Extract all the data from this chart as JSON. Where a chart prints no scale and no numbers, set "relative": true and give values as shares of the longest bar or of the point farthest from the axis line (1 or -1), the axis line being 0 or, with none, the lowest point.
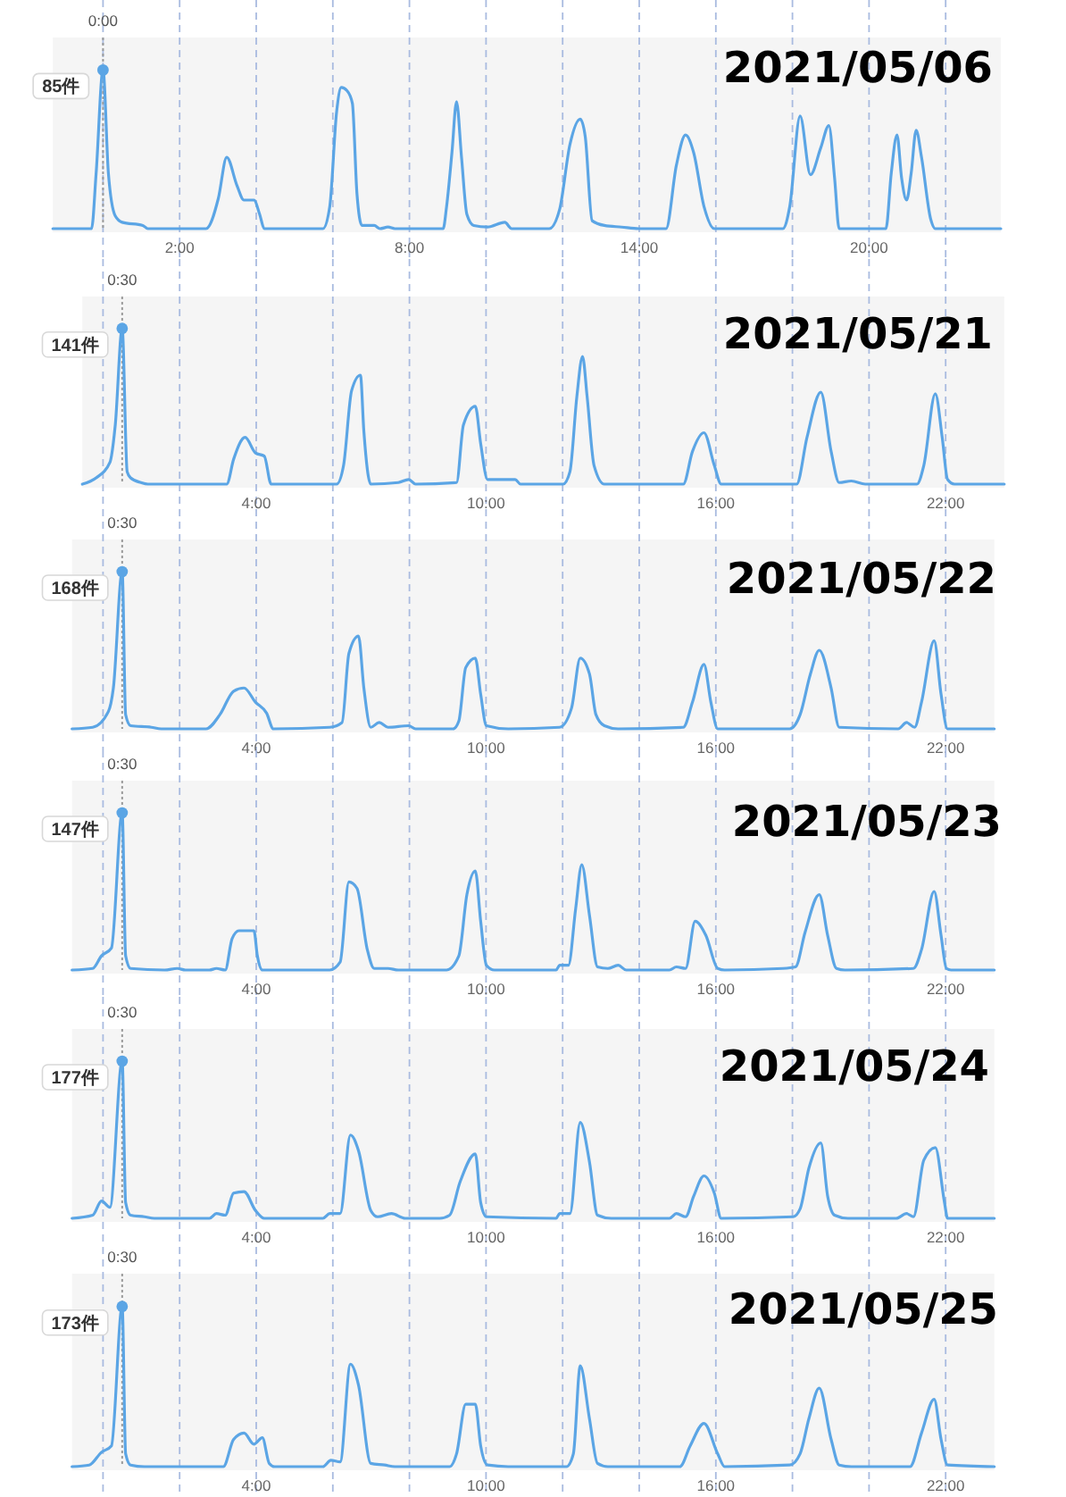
{
  "chart_data": [
    {
      "type": "line",
      "title": "2021/05/06",
      "relative": true,
      "xlim": [
        -1.31,
        23.44
      ],
      "tick_labels": "x",
      "grid": "x",
      "xticks": [
        {
          "value": 0,
          "label": null
        },
        {
          "value": 2,
          "label": "2:00"
        },
        {
          "value": 4,
          "label": null
        },
        {
          "value": 6,
          "label": null
        },
        {
          "value": 8,
          "label": "8:00"
        },
        {
          "value": 10,
          "label": null
        },
        {
          "value": 12,
          "label": null
        },
        {
          "value": 14,
          "label": "14:00"
        },
        {
          "value": 16,
          "label": null
        },
        {
          "value": 18,
          "label": null
        },
        {
          "value": 20,
          "label": "20:00"
        },
        {
          "value": 22,
          "label": null
        }
      ],
      "ref_lines": [
        {
          "axis": "x",
          "value": 0,
          "label": "0:00",
          "color": "#9a9a9a",
          "line_style": "dotted"
        }
      ],
      "annotations": [
        "85件"
      ],
      "series": [
        {
          "color": "#5ba5e5",
          "x": [
            -1.31,
            -0.3,
            -0.18,
            0,
            0.14,
            0.32,
            0.5,
            1.04,
            1.17,
            2.69,
            3.01,
            3.23,
            3.5,
            3.68,
            3.94,
            4.09,
            4.21,
            5.74,
            5.92,
            6.1,
            6.22,
            6.37,
            6.51,
            6.63,
            6.76,
            7.08,
            7.23,
            7.44,
            7.62,
            8.88,
            8.97,
            9.11,
            9.23,
            9.36,
            9.5,
            9.68,
            10.04,
            10.49,
            10.67,
            11.65,
            11.92,
            12.19,
            12.46,
            12.59,
            12.77,
            13.09,
            13.54,
            13.99,
            14.7,
            14.97,
            15.21,
            15.42,
            15.69,
            15.96,
            17.75,
            17.93,
            18.2,
            18.47,
            18.74,
            18.95,
            19.1,
            19.22,
            20.44,
            20.58,
            20.73,
            20.85,
            20.98,
            21.1,
            21.23,
            21.37,
            21.61,
            21.73,
            23.44
          ],
          "values": [
            0,
            0,
            0.35,
            1,
            0.35,
            0.08,
            0.04,
            0.02,
            0,
            0,
            0.19,
            0.45,
            0.27,
            0.18,
            0.18,
            0.09,
            0,
            0,
            0.14,
            0.74,
            0.89,
            0.87,
            0.79,
            0.22,
            0.02,
            0.02,
            0,
            0.01,
            0,
            0,
            0.14,
            0.48,
            0.8,
            0.45,
            0.09,
            0.02,
            0.01,
            0.04,
            0,
            0,
            0.12,
            0.53,
            0.69,
            0.58,
            0.05,
            0.02,
            0.01,
            0,
            0,
            0.4,
            0.59,
            0.48,
            0.14,
            0,
            0,
            0.14,
            0.71,
            0.34,
            0.51,
            0.65,
            0.32,
            0,
            0,
            0.35,
            0.59,
            0.32,
            0.18,
            0.35,
            0.62,
            0.45,
            0.06,
            0,
            0
          ]
        },
        {
          "type": "scatter",
          "color": "#5ba5e5",
          "marker": "circle",
          "x": [
            0
          ],
          "values": [
            1
          ]
        }
      ]
    },
    {
      "type": "line",
      "title": "2021/05/21",
      "relative": true,
      "xlim": [
        -0.54,
        23.53
      ],
      "tick_labels": "x",
      "grid": "x",
      "xticks": [
        {
          "value": 0,
          "label": null
        },
        {
          "value": 2,
          "label": null
        },
        {
          "value": 4,
          "label": "4:00"
        },
        {
          "value": 6,
          "label": null
        },
        {
          "value": 8,
          "label": null
        },
        {
          "value": 10,
          "label": "10:00"
        },
        {
          "value": 12,
          "label": null
        },
        {
          "value": 14,
          "label": null
        },
        {
          "value": 16,
          "label": "16:00"
        },
        {
          "value": 18,
          "label": null
        },
        {
          "value": 20,
          "label": null
        },
        {
          "value": 22,
          "label": "22:00"
        }
      ],
      "ref_lines": [
        {
          "axis": "x",
          "value": 0.5,
          "label": "0:30",
          "color": "#9a9a9a",
          "line_style": "dotted"
        }
      ],
      "annotations": [
        "141件"
      ],
      "series": [
        {
          "color": "#5ba5e5",
          "x": [
            -0.54,
            -0.18,
            0.18,
            0.32,
            0.5,
            0.63,
            0.72,
            0.99,
            1.17,
            3.23,
            3.41,
            3.71,
            3.98,
            4.21,
            4.39,
            6.1,
            6.28,
            6.49,
            6.72,
            6.81,
            6.99,
            7.71,
            7.98,
            8.16,
            9.23,
            9.41,
            9.72,
            9.86,
            10.04,
            10.76,
            10.9,
            12.01,
            12.19,
            12.37,
            12.52,
            12.64,
            12.82,
            13.09,
            15.15,
            15.39,
            15.69,
            15.96,
            16.14,
            18.11,
            18.38,
            18.74,
            19.01,
            19.22,
            19.54,
            19.9,
            21.25,
            21.43,
            21.73,
            21.91,
            22.05,
            22.23,
            23.53
          ],
          "values": [
            0,
            0.04,
            0.14,
            0.38,
            1,
            0.08,
            0.04,
            0.01,
            0,
            0,
            0.16,
            0.3,
            0.2,
            0.18,
            0,
            0,
            0.12,
            0.6,
            0.7,
            0.34,
            0,
            0.01,
            0.03,
            0,
            0.01,
            0.38,
            0.5,
            0.26,
            0.03,
            0.03,
            0,
            0,
            0.08,
            0.56,
            0.82,
            0.56,
            0.12,
            0,
            0,
            0.21,
            0.33,
            0.12,
            0,
            0,
            0.3,
            0.59,
            0.21,
            0.01,
            0.02,
            0,
            0,
            0.12,
            0.58,
            0.3,
            0.03,
            0,
            0
          ]
        },
        {
          "type": "scatter",
          "color": "#5ba5e5",
          "marker": "circle",
          "x": [
            0.5
          ],
          "values": [
            1
          ]
        }
      ]
    },
    {
      "type": "line",
      "title": "2021/05/22",
      "relative": true,
      "xlim": [
        -0.81,
        23.27
      ],
      "tick_labels": "x",
      "grid": "x",
      "xticks": [
        {
          "value": 0,
          "label": null
        },
        {
          "value": 2,
          "label": null
        },
        {
          "value": 4,
          "label": "4:00"
        },
        {
          "value": 6,
          "label": null
        },
        {
          "value": 8,
          "label": null
        },
        {
          "value": 10,
          "label": "10:00"
        },
        {
          "value": 12,
          "label": null
        },
        {
          "value": 14,
          "label": null
        },
        {
          "value": 16,
          "label": "16:00"
        },
        {
          "value": 18,
          "label": null
        },
        {
          "value": 20,
          "label": null
        },
        {
          "value": 22,
          "label": "22:00"
        }
      ],
      "ref_lines": [
        {
          "axis": "x",
          "value": 0.5,
          "label": "0:30",
          "color": "#9a9a9a",
          "line_style": "dotted"
        }
      ],
      "annotations": [
        "168件"
      ],
      "series": [
        {
          "color": "#5ba5e5",
          "x": [
            -0.81,
            -0.27,
            0.14,
            0.27,
            0.5,
            0.59,
            0.72,
            1.26,
            1.52,
            2.69,
            3.05,
            3.41,
            3.68,
            3.98,
            4.27,
            4.45,
            5.92,
            6.24,
            6.42,
            6.67,
            6.81,
            6.99,
            7.21,
            7.44,
            7.98,
            8.16,
            9.14,
            9.29,
            9.47,
            9.72,
            9.86,
            10.01,
            10.58,
            11.92,
            12.23,
            12.46,
            12.7,
            12.87,
            13.09,
            13.45,
            15.15,
            15.39,
            15.69,
            15.87,
            16.05,
            17.93,
            18.2,
            18.47,
            18.7,
            19.01,
            19.22,
            20.76,
            20.98,
            21.19,
            21.37,
            21.7,
            21.88,
            22.05,
            23.27
          ],
          "values": [
            0,
            0.01,
            0.11,
            0.26,
            1,
            0.09,
            0.02,
            0.01,
            0,
            0,
            0.09,
            0.24,
            0.26,
            0.17,
            0.1,
            0,
            0.01,
            0.04,
            0.48,
            0.59,
            0.26,
            0.01,
            0.04,
            0.01,
            0.02,
            0,
            0,
            0.05,
            0.39,
            0.45,
            0.22,
            0.02,
            0,
            0.01,
            0.13,
            0.45,
            0.35,
            0.09,
            0.02,
            0,
            0.01,
            0.17,
            0.41,
            0.17,
            0,
            0,
            0.09,
            0.35,
            0.5,
            0.26,
            0.01,
            0,
            0.04,
            0.01,
            0.17,
            0.56,
            0.22,
            0,
            0
          ]
        },
        {
          "type": "scatter",
          "color": "#5ba5e5",
          "marker": "circle",
          "x": [
            0.5
          ],
          "values": [
            1
          ]
        }
      ]
    },
    {
      "type": "line",
      "title": "2021/05/23",
      "relative": true,
      "xlim": [
        -0.81,
        23.27
      ],
      "tick_labels": "x",
      "grid": "x",
      "xticks": [
        {
          "value": 0,
          "label": null
        },
        {
          "value": 2,
          "label": null
        },
        {
          "value": 4,
          "label": "4:00"
        },
        {
          "value": 6,
          "label": null
        },
        {
          "value": 8,
          "label": null
        },
        {
          "value": 10,
          "label": "10:00"
        },
        {
          "value": 12,
          "label": null
        },
        {
          "value": 14,
          "label": null
        },
        {
          "value": 16,
          "label": "16:00"
        },
        {
          "value": 18,
          "label": null
        },
        {
          "value": 20,
          "label": null
        },
        {
          "value": 22,
          "label": "22:00"
        }
      ],
      "ref_lines": [
        {
          "axis": "x",
          "value": 0.5,
          "label": "0:30",
          "color": "#9a9a9a",
          "line_style": "dotted"
        }
      ],
      "annotations": [
        "147件"
      ],
      "series": [
        {
          "color": "#5ba5e5",
          "x": [
            -0.81,
            -0.27,
            -0.04,
            0.22,
            0.5,
            0.59,
            0.72,
            1.61,
            1.94,
            2.15,
            2.78,
            2.96,
            3.19,
            3.37,
            3.55,
            3.94,
            4.03,
            4.16,
            5.92,
            6.19,
            6.42,
            6.63,
            6.9,
            7.08,
            7.44,
            7.71,
            8.97,
            9.29,
            9.5,
            9.72,
            9.86,
            10.01,
            10.22,
            11.83,
            11.92,
            12.15,
            12.34,
            12.5,
            12.7,
            12.91,
            13.18,
            13.45,
            13.66,
            14.79,
            14.97,
            15.21,
            15.46,
            15.74,
            16.05,
            16.23,
            17.75,
            18.08,
            18.33,
            18.7,
            18.92,
            19.15,
            19.37,
            21.16,
            21.37,
            21.7,
            21.88,
            22.02,
            22.14,
            23.27
          ],
          "values": [
            0,
            0.01,
            0.09,
            0.14,
            1,
            0.09,
            0.01,
            0,
            0.01,
            0,
            0,
            0.01,
            0,
            0.2,
            0.25,
            0.25,
            0.09,
            0,
            0,
            0.05,
            0.56,
            0.52,
            0.13,
            0.01,
            0.01,
            0,
            0,
            0.09,
            0.48,
            0.63,
            0.31,
            0.03,
            0,
            0,
            0.03,
            0.03,
            0.39,
            0.67,
            0.35,
            0.02,
            0.01,
            0.03,
            0,
            0,
            0.02,
            0.01,
            0.31,
            0.22,
            0.01,
            0,
            0.01,
            0.02,
            0.24,
            0.48,
            0.22,
            0.01,
            0,
            0.01,
            0.13,
            0.5,
            0.22,
            0.01,
            0,
            0
          ]
        },
        {
          "type": "scatter",
          "color": "#5ba5e5",
          "marker": "circle",
          "x": [
            0.5
          ],
          "values": [
            1
          ]
        }
      ]
    },
    {
      "type": "line",
      "title": "2021/05/24",
      "relative": true,
      "xlim": [
        -0.81,
        23.27
      ],
      "tick_labels": "x",
      "grid": "x",
      "xticks": [
        {
          "value": 0,
          "label": null
        },
        {
          "value": 2,
          "label": null
        },
        {
          "value": 4,
          "label": "4:00"
        },
        {
          "value": 6,
          "label": null
        },
        {
          "value": 8,
          "label": null
        },
        {
          "value": 10,
          "label": "10:00"
        },
        {
          "value": 12,
          "label": null
        },
        {
          "value": 14,
          "label": null
        },
        {
          "value": 16,
          "label": "16:00"
        },
        {
          "value": 18,
          "label": null
        },
        {
          "value": 20,
          "label": null
        },
        {
          "value": 22,
          "label": "22:00"
        }
      ],
      "ref_lines": [
        {
          "axis": "x",
          "value": 0.5,
          "label": "0:30",
          "color": "#9a9a9a",
          "line_style": "dotted"
        }
      ],
      "annotations": [
        "177件"
      ],
      "series": [
        {
          "color": "#5ba5e5",
          "x": [
            -0.81,
            -0.27,
            -0.04,
            0.18,
            0.5,
            0.59,
            0.72,
            1.08,
            1.34,
            2.78,
            2.96,
            3.19,
            3.41,
            3.68,
            3.98,
            4.21,
            5.74,
            5.92,
            6.19,
            6.46,
            6.67,
            6.99,
            7.17,
            7.53,
            7.89,
            8.79,
            9.05,
            9.32,
            9.72,
            9.86,
            10.01,
            11.83,
            11.92,
            12.19,
            12.46,
            12.7,
            12.91,
            13.27,
            14.79,
            14.97,
            15.21,
            15.42,
            15.69,
            15.96,
            16.14,
            18.02,
            18.2,
            18.43,
            18.74,
            18.92,
            19.1,
            19.45,
            20.71,
            20.98,
            21.16,
            21.43,
            21.73,
            21.97,
            22.05,
            23.27
          ],
          "values": [
            0,
            0.02,
            0.11,
            0.07,
            1,
            0.1,
            0.02,
            0.01,
            0,
            0,
            0.03,
            0.02,
            0.16,
            0.17,
            0.05,
            0,
            0,
            0.03,
            0.03,
            0.53,
            0.43,
            0.05,
            0.01,
            0.03,
            0,
            0,
            0.02,
            0.23,
            0.41,
            0.1,
            0.01,
            0,
            0.03,
            0.03,
            0.61,
            0.36,
            0.02,
            0,
            0,
            0.03,
            0.01,
            0.14,
            0.27,
            0.16,
            0,
            0.01,
            0.06,
            0.32,
            0.48,
            0.14,
            0.02,
            0,
            0,
            0.03,
            0.01,
            0.37,
            0.45,
            0.1,
            0,
            0
          ]
        },
        {
          "type": "scatter",
          "color": "#5ba5e5",
          "marker": "circle",
          "x": [
            0.5
          ],
          "values": [
            1
          ]
        }
      ]
    },
    {
      "type": "line",
      "title": "2021/05/25",
      "relative": true,
      "xlim": [
        -0.81,
        23.27
      ],
      "tick_labels": "x",
      "grid": "x",
      "xticks": [
        {
          "value": 0,
          "label": null
        },
        {
          "value": 2,
          "label": null
        },
        {
          "value": 4,
          "label": "4:00"
        },
        {
          "value": 6,
          "label": null
        },
        {
          "value": 8,
          "label": null
        },
        {
          "value": 10,
          "label": "10:00"
        },
        {
          "value": 12,
          "label": null
        },
        {
          "value": 14,
          "label": null
        },
        {
          "value": 16,
          "label": "16:00"
        },
        {
          "value": 18,
          "label": null
        },
        {
          "value": 20,
          "label": null
        },
        {
          "value": 22,
          "label": "22:00"
        }
      ],
      "ref_lines": [
        {
          "axis": "x",
          "value": 0.5,
          "label": "0:30",
          "color": "#9a9a9a",
          "line_style": "dotted"
        }
      ],
      "annotations": [
        "173件"
      ],
      "series": [
        {
          "color": "#5ba5e5",
          "x": [
            -0.81,
            -0.36,
            -0.04,
            0.22,
            0.5,
            0.59,
            0.72,
            1.08,
            3.14,
            3.41,
            3.68,
            3.94,
            4.16,
            4.34,
            4.48,
            5.74,
            5.95,
            6.19,
            6.46,
            6.67,
            6.99,
            7.35,
            7.62,
            9.05,
            9.23,
            9.47,
            9.72,
            9.86,
            10.04,
            10.58,
            12.1,
            12.28,
            12.46,
            12.7,
            12.91,
            13.18,
            15.06,
            15.33,
            15.69,
            16.05,
            16.23,
            17.93,
            18.2,
            18.43,
            18.7,
            19.01,
            19.22,
            19.54,
            21.07,
            21.37,
            21.7,
            21.88,
            22.05,
            23.27
          ],
          "values": [
            0,
            0.01,
            0.09,
            0.13,
            1,
            0.08,
            0.01,
            0,
            0,
            0.17,
            0.21,
            0.14,
            0.18,
            0.02,
            0,
            0,
            0.04,
            0.03,
            0.64,
            0.51,
            0.02,
            0.01,
            0,
            0,
            0.08,
            0.39,
            0.39,
            0.13,
            0.01,
            0,
            0,
            0.08,
            0.63,
            0.3,
            0.02,
            0,
            0,
            0.13,
            0.27,
            0.08,
            0,
            0.01,
            0.08,
            0.3,
            0.49,
            0.17,
            0.01,
            0,
            0,
            0.21,
            0.42,
            0.17,
            0.01,
            0
          ]
        },
        {
          "type": "scatter",
          "color": "#5ba5e5",
          "marker": "circle",
          "x": [
            0.5
          ],
          "values": [
            1
          ]
        }
      ]
    }
  ]
}
